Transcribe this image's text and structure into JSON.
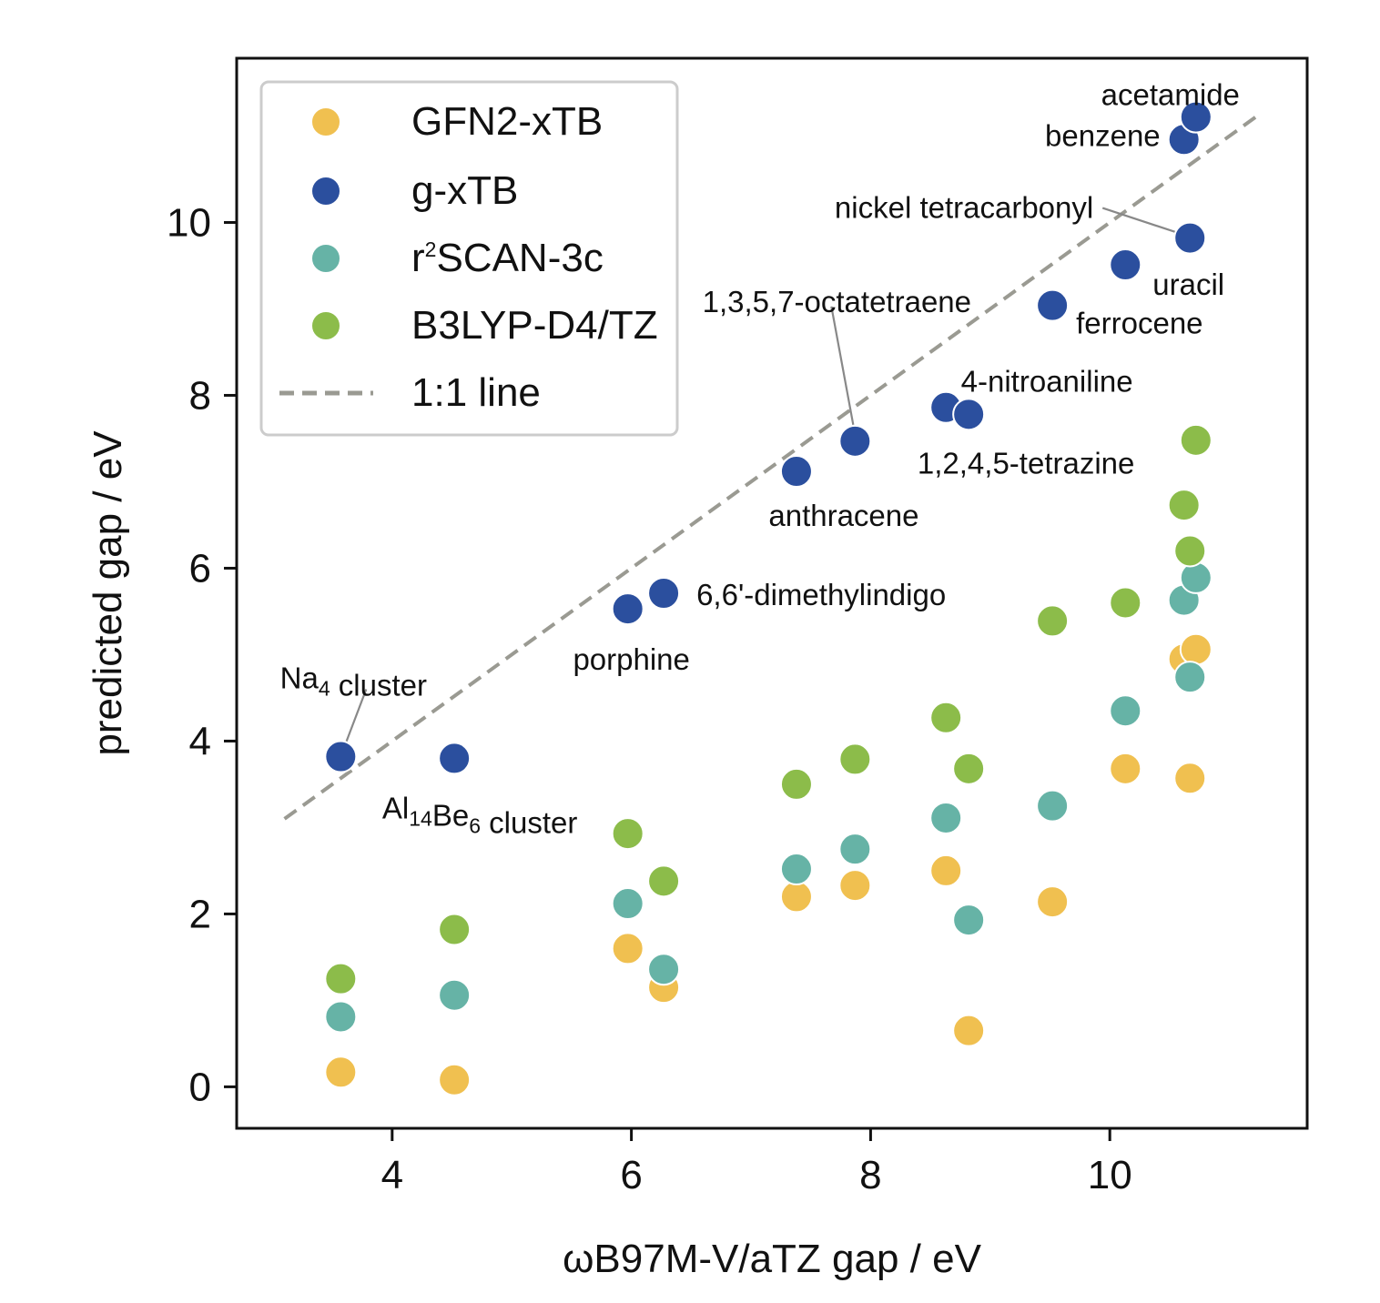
{
  "chart_data": {
    "type": "scatter",
    "title": "",
    "xlabel": "ωB97M-V/aTZ gap / eV",
    "ylabel": "predicted gap / eV",
    "xlim": [
      2.7,
      11.65
    ],
    "ylim": [
      -0.48,
      11.9
    ],
    "xticks": [
      4,
      6,
      8,
      10
    ],
    "yticks": [
      0,
      2,
      4,
      6,
      8,
      10
    ],
    "xtick_labels": [
      "4",
      "6",
      "8",
      "10"
    ],
    "ytick_labels": [
      "0",
      "2",
      "4",
      "6",
      "8",
      "10"
    ],
    "grid": false,
    "legend_position": "top-left",
    "series": [
      {
        "name": "GFN2-xTB",
        "color": "#f0c050",
        "x": [
          3.57,
          4.52,
          5.97,
          6.27,
          7.38,
          7.87,
          8.63,
          8.82,
          9.52,
          10.13,
          10.62,
          10.72,
          10.67
        ],
        "y": [
          0.17,
          0.08,
          1.6,
          1.15,
          2.2,
          2.33,
          2.5,
          0.65,
          2.14,
          3.68,
          4.95,
          5.06,
          3.57
        ]
      },
      {
        "name": "g-xTB",
        "color": "#2b4f9e",
        "x": [
          3.57,
          4.52,
          5.97,
          6.27,
          7.38,
          7.87,
          8.63,
          8.82,
          9.52,
          10.13,
          10.67,
          10.62,
          10.72
        ],
        "y": [
          3.82,
          3.8,
          5.53,
          5.71,
          7.12,
          7.47,
          7.86,
          7.78,
          9.04,
          9.51,
          9.82,
          10.96,
          11.22
        ]
      },
      {
        "name": "r²SCAN-3c",
        "color": "#66b3a6",
        "x": [
          3.57,
          4.52,
          5.97,
          6.27,
          7.38,
          7.87,
          8.63,
          8.82,
          9.52,
          10.13,
          10.62,
          10.72,
          10.67
        ],
        "y": [
          0.81,
          1.06,
          2.12,
          1.36,
          2.52,
          2.75,
          3.11,
          1.93,
          3.25,
          4.35,
          5.63,
          5.89,
          4.74
        ]
      },
      {
        "name": "B3LYP-D4/TZ",
        "color": "#8cbc4a",
        "x": [
          3.57,
          4.52,
          5.97,
          6.27,
          7.38,
          7.87,
          8.63,
          8.82,
          9.52,
          10.13,
          10.62,
          10.72,
          10.67
        ],
        "y": [
          1.25,
          1.82,
          2.93,
          2.38,
          3.5,
          3.79,
          4.27,
          3.68,
          5.39,
          5.6,
          6.73,
          7.48,
          6.2
        ]
      }
    ],
    "reference_line": {
      "name": "1:1 line",
      "color": "#9a9a92",
      "x": [
        3.1,
        11.25
      ],
      "y": [
        3.1,
        11.25
      ]
    },
    "annotations": [
      {
        "text": "acetamide",
        "x": 10.72,
        "y": 11.22,
        "anchor": "above"
      },
      {
        "text": "benzene",
        "x": 10.62,
        "y": 10.96,
        "anchor": "left"
      },
      {
        "text": "nickel tetracarbonyl",
        "x": 10.67,
        "y": 9.82,
        "anchor": "upper-left",
        "leader": true
      },
      {
        "text": "uracil",
        "x": 10.13,
        "y": 9.51,
        "anchor": "lower-right"
      },
      {
        "text": "ferrocene",
        "x": 9.52,
        "y": 9.04,
        "anchor": "right"
      },
      {
        "text": "1,3,5,7-octatetraene",
        "x": 7.87,
        "y": 7.47,
        "anchor": "upper-left",
        "leader": true
      },
      {
        "text": "4-nitroaniline",
        "x": 8.82,
        "y": 7.78,
        "anchor": "above"
      },
      {
        "text": "1,2,4,5-tetrazine",
        "x": 8.82,
        "y": 7.78,
        "anchor": "below"
      },
      {
        "text": "anthracene",
        "x": 7.38,
        "y": 7.12,
        "anchor": "below"
      },
      {
        "text": "6,6'-dimethylindigo",
        "x": 6.27,
        "y": 5.71,
        "anchor": "right"
      },
      {
        "text": "porphine",
        "x": 5.97,
        "y": 5.53,
        "anchor": "below"
      },
      {
        "text": "Na₄ cluster",
        "x": 3.57,
        "y": 3.82,
        "anchor": "above",
        "leader": true
      },
      {
        "text": "Al₁₄Be₆ cluster",
        "x": 4.52,
        "y": 3.8,
        "anchor": "below"
      }
    ]
  }
}
